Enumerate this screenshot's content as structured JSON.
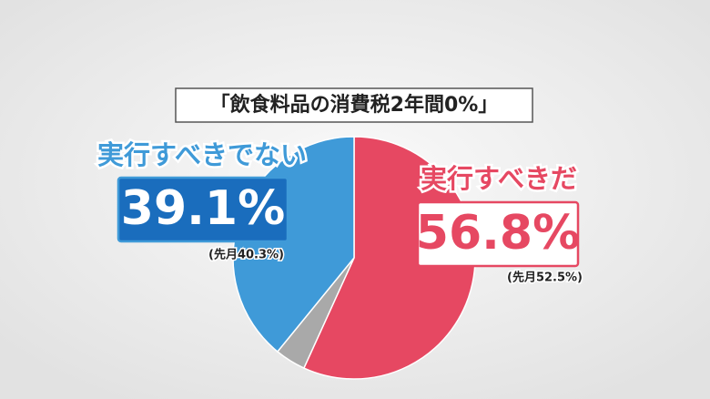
{
  "chart_data": {
    "type": "pie",
    "title": "「飲食料品の消費税2年間0%」",
    "categories": [
      "実行すべきだ",
      null,
      "実行すべきでない"
    ],
    "values": [
      56.8,
      4.1,
      39.1
    ],
    "value_labels": [
      "56.8%",
      null,
      "39.1%"
    ],
    "annotations": [
      "(先月52.5%)",
      null,
      "(先月40.3%)"
    ],
    "colors": [
      "#e64862",
      "#a9a9a9",
      "#3f9ad8"
    ]
  }
}
